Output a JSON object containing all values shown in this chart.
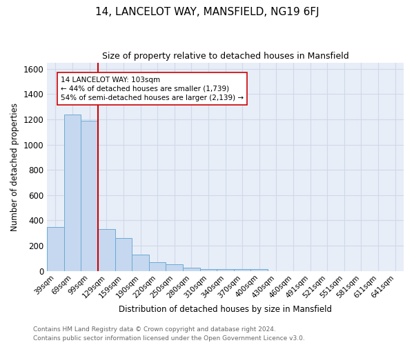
{
  "title": "14, LANCELOT WAY, MANSFIELD, NG19 6FJ",
  "subtitle": "Size of property relative to detached houses in Mansfield",
  "xlabel": "Distribution of detached houses by size in Mansfield",
  "ylabel": "Number of detached properties",
  "footnote1": "Contains HM Land Registry data © Crown copyright and database right 2024.",
  "footnote2": "Contains public sector information licensed under the Open Government Licence v3.0.",
  "categories": [
    "39sqm",
    "69sqm",
    "99sqm",
    "129sqm",
    "159sqm",
    "190sqm",
    "220sqm",
    "250sqm",
    "280sqm",
    "310sqm",
    "340sqm",
    "370sqm",
    "400sqm",
    "430sqm",
    "460sqm",
    "491sqm",
    "521sqm",
    "551sqm",
    "581sqm",
    "611sqm",
    "641sqm"
  ],
  "values": [
    350,
    1240,
    1190,
    330,
    260,
    130,
    70,
    50,
    25,
    15,
    15,
    15,
    15,
    0,
    0,
    0,
    0,
    0,
    0,
    0,
    0
  ],
  "bar_color": "#c5d8ef",
  "bar_edge_color": "#6aaad4",
  "property_line_color": "#cc0000",
  "ylim": [
    0,
    1650
  ],
  "yticks": [
    0,
    200,
    400,
    600,
    800,
    1000,
    1200,
    1400,
    1600
  ],
  "annotation_text": "14 LANCELOT WAY: 103sqm\n← 44% of detached houses are smaller (1,739)\n54% of semi-detached houses are larger (2,139) →",
  "annotation_box_color": "#ffffff",
  "annotation_box_edge": "#cc0000",
  "grid_color": "#d0d8e8",
  "bg_color": "#e8eef8"
}
